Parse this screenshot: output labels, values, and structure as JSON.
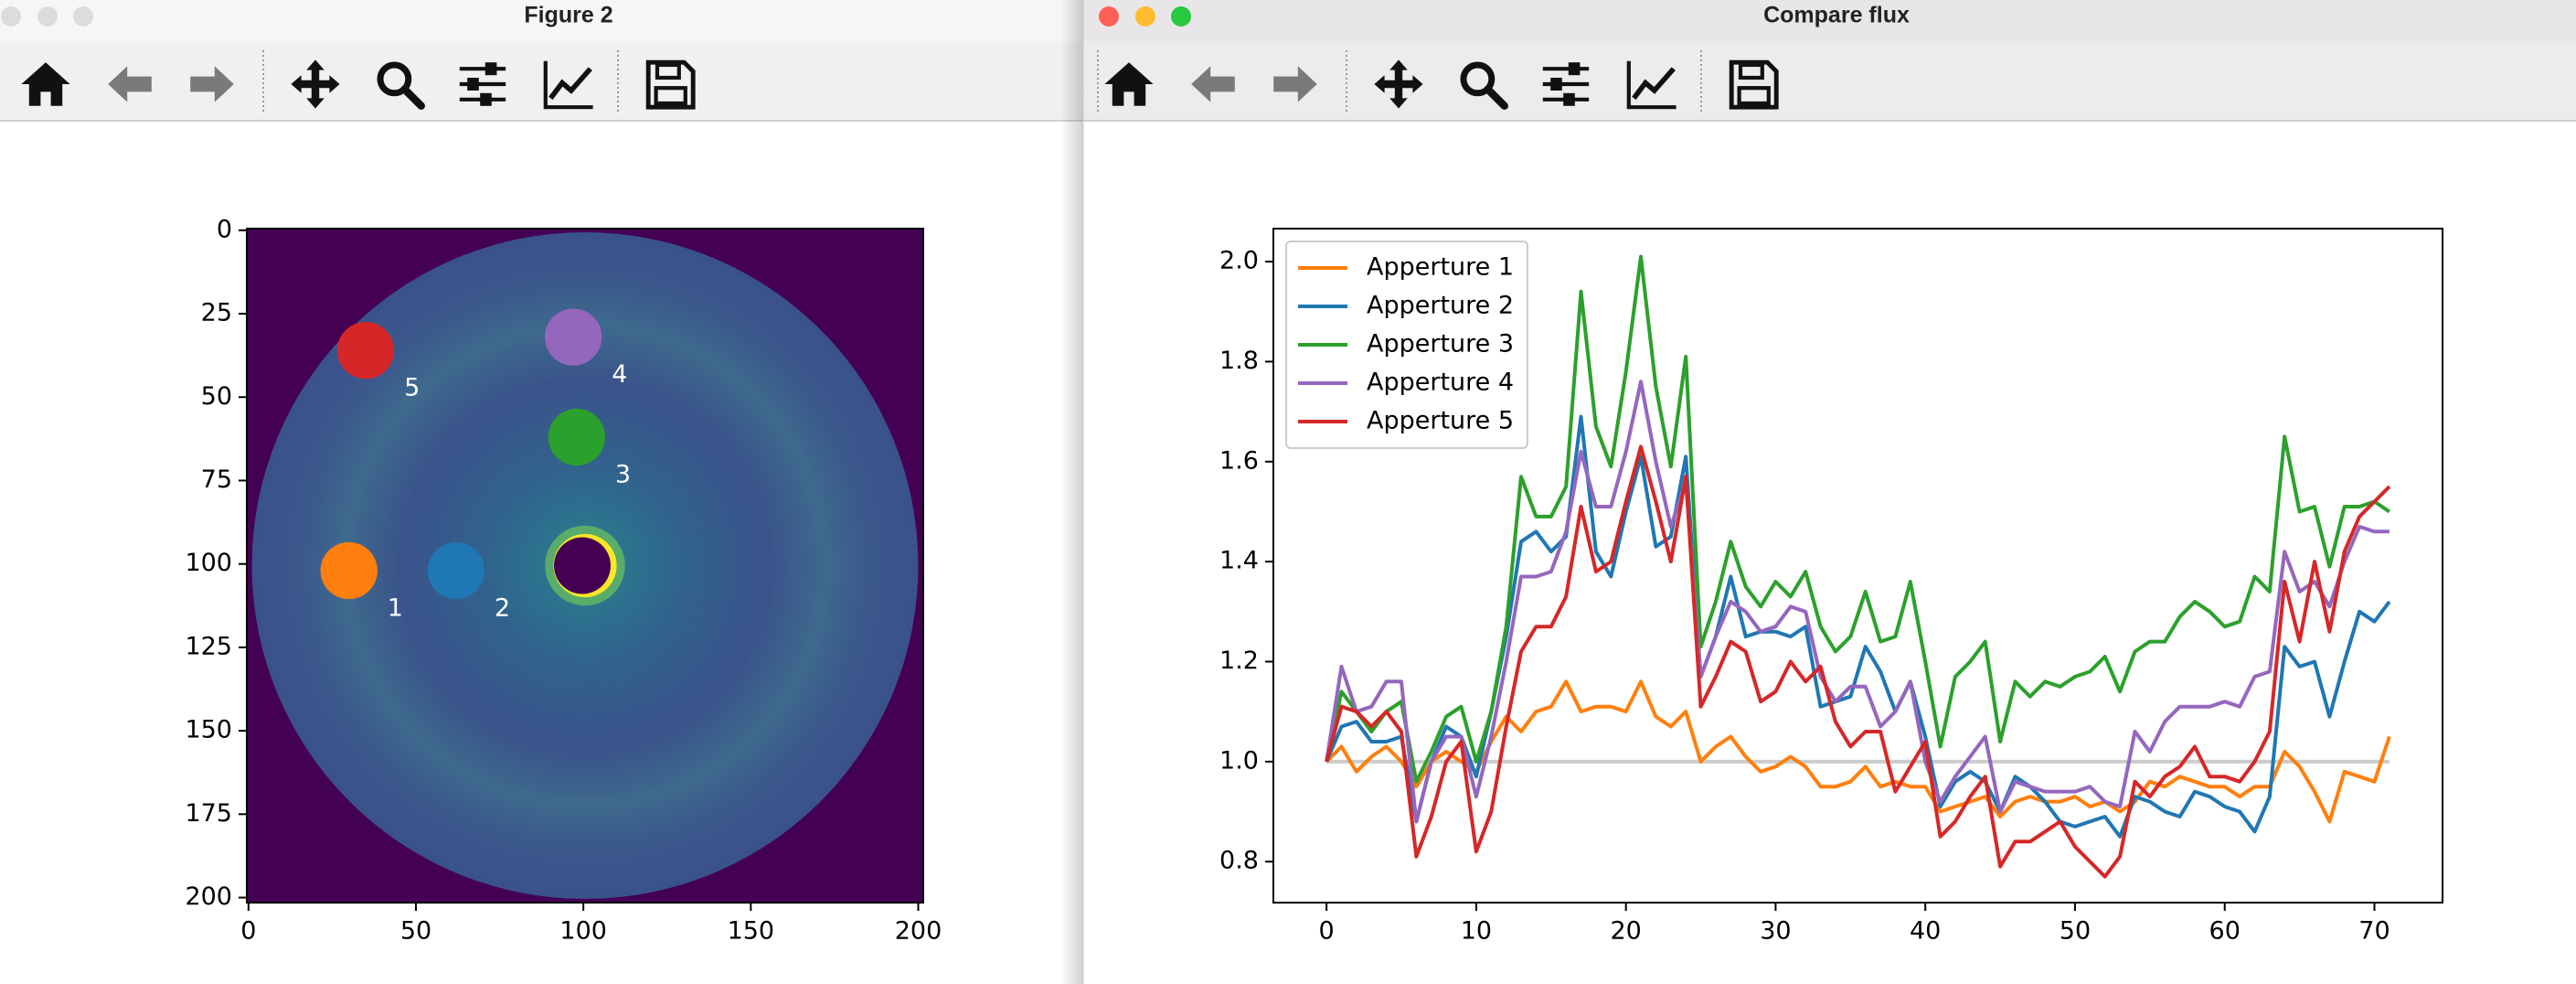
{
  "windows": [
    {
      "title": "Figure 2"
    },
    {
      "title": "Compare flux"
    }
  ],
  "chart_data": [
    {
      "type": "image",
      "x": [
        30,
        62,
        98,
        97,
        35
      ],
      "y": [
        102,
        102,
        62,
        32,
        36
      ],
      "sizes": [
        8.5,
        8.5,
        8.5,
        8.5,
        8.5
      ],
      "labels": [
        "1",
        "2",
        "3",
        "4",
        "5"
      ],
      "colors": [
        "#ff7f0e",
        "#1f77b4",
        "#2ca02c",
        "#9467bd",
        "#d62728"
      ],
      "xlim": [
        -0.5,
        201.5
      ],
      "ylim": [
        201.5,
        -0.5
      ],
      "xticks": [
        0,
        50,
        100,
        150,
        200
      ],
      "yticks": [
        0,
        25,
        50,
        75,
        100,
        125,
        150,
        175,
        200
      ]
    },
    {
      "type": "line",
      "x": [
        0,
        1,
        2,
        3,
        4,
        5,
        6,
        7,
        8,
        9,
        10,
        11,
        12,
        13,
        14,
        15,
        16,
        17,
        18,
        19,
        20,
        21,
        22,
        23,
        24,
        25,
        26,
        27,
        28,
        29,
        30,
        31,
        32,
        33,
        34,
        35,
        36,
        37,
        38,
        39,
        40,
        41,
        42,
        43,
        44,
        45,
        46,
        47,
        48,
        49,
        50,
        51,
        52,
        53,
        54,
        55,
        56,
        57,
        58,
        59,
        60,
        61,
        62,
        63,
        64,
        65,
        66,
        67,
        68,
        69,
        70,
        71
      ],
      "series": [
        {
          "name": "Apperture 1",
          "color": "#ff7f0e",
          "values": [
            1.0,
            1.03,
            0.98,
            1.01,
            1.03,
            1.0,
            0.95,
            1.0,
            1.02,
            1.0,
            0.98,
            1.04,
            1.09,
            1.06,
            1.1,
            1.11,
            1.16,
            1.1,
            1.11,
            1.11,
            1.1,
            1.16,
            1.09,
            1.07,
            1.1,
            1.0,
            1.03,
            1.05,
            1.01,
            0.98,
            0.99,
            1.01,
            0.99,
            0.95,
            0.95,
            0.96,
            0.99,
            0.95,
            0.96,
            0.95,
            0.95,
            0.9,
            0.91,
            0.92,
            0.93,
            0.89,
            0.92,
            0.93,
            0.92,
            0.92,
            0.93,
            0.91,
            0.92,
            0.9,
            0.92,
            0.96,
            0.95,
            0.97,
            0.96,
            0.95,
            0.95,
            0.93,
            0.95,
            0.95,
            1.02,
            0.99,
            0.94,
            0.88,
            0.98,
            0.97,
            0.96,
            1.05
          ]
        },
        {
          "name": "Apperture 2",
          "color": "#1f77b4",
          "values": [
            1.0,
            1.07,
            1.08,
            1.04,
            1.04,
            1.05,
            0.88,
            1.0,
            1.07,
            1.05,
            0.97,
            1.1,
            1.25,
            1.44,
            1.46,
            1.42,
            1.45,
            1.69,
            1.42,
            1.37,
            1.5,
            1.61,
            1.43,
            1.45,
            1.61,
            1.17,
            1.25,
            1.37,
            1.25,
            1.26,
            1.26,
            1.25,
            1.27,
            1.11,
            1.12,
            1.13,
            1.23,
            1.18,
            1.1,
            1.16,
            1.05,
            0.91,
            0.96,
            0.98,
            0.96,
            0.9,
            0.97,
            0.95,
            0.92,
            0.88,
            0.87,
            0.88,
            0.89,
            0.85,
            0.93,
            0.92,
            0.9,
            0.89,
            0.94,
            0.93,
            0.91,
            0.9,
            0.86,
            0.93,
            1.23,
            1.19,
            1.2,
            1.09,
            1.2,
            1.3,
            1.28,
            1.32
          ]
        },
        {
          "name": "Apperture 3",
          "color": "#2ca02c",
          "values": [
            1.0,
            1.14,
            1.1,
            1.06,
            1.1,
            1.12,
            0.96,
            1.02,
            1.09,
            1.11,
            1.0,
            1.1,
            1.27,
            1.57,
            1.49,
            1.49,
            1.55,
            1.94,
            1.67,
            1.59,
            1.78,
            2.01,
            1.75,
            1.59,
            1.81,
            1.23,
            1.32,
            1.44,
            1.35,
            1.31,
            1.36,
            1.33,
            1.38,
            1.27,
            1.22,
            1.25,
            1.34,
            1.24,
            1.25,
            1.36,
            1.2,
            1.03,
            1.17,
            1.2,
            1.24,
            1.04,
            1.16,
            1.13,
            1.16,
            1.15,
            1.17,
            1.18,
            1.21,
            1.14,
            1.22,
            1.24,
            1.24,
            1.29,
            1.32,
            1.3,
            1.27,
            1.28,
            1.37,
            1.34,
            1.65,
            1.5,
            1.51,
            1.39,
            1.51,
            1.51,
            1.52,
            1.5
          ]
        },
        {
          "name": "Apperture 4",
          "color": "#9467bd",
          "values": [
            1.0,
            1.19,
            1.1,
            1.11,
            1.16,
            1.16,
            0.88,
            1.0,
            1.05,
            1.05,
            0.93,
            1.05,
            1.2,
            1.37,
            1.37,
            1.38,
            1.46,
            1.62,
            1.51,
            1.51,
            1.62,
            1.76,
            1.6,
            1.47,
            1.56,
            1.17,
            1.25,
            1.32,
            1.3,
            1.26,
            1.27,
            1.31,
            1.3,
            1.17,
            1.12,
            1.15,
            1.15,
            1.07,
            1.1,
            1.16,
            1.0,
            0.92,
            0.97,
            1.01,
            1.05,
            0.9,
            0.96,
            0.95,
            0.94,
            0.94,
            0.94,
            0.95,
            0.92,
            0.91,
            1.06,
            1.02,
            1.08,
            1.11,
            1.11,
            1.11,
            1.12,
            1.11,
            1.17,
            1.18,
            1.42,
            1.34,
            1.36,
            1.31,
            1.4,
            1.47,
            1.46,
            1.46
          ]
        },
        {
          "name": "Apperture 5",
          "color": "#d62728",
          "values": [
            1.0,
            1.11,
            1.1,
            1.07,
            1.1,
            1.06,
            0.81,
            0.89,
            1.0,
            1.04,
            0.82,
            0.9,
            1.07,
            1.22,
            1.27,
            1.27,
            1.33,
            1.51,
            1.38,
            1.4,
            1.52,
            1.63,
            1.52,
            1.4,
            1.57,
            1.11,
            1.17,
            1.24,
            1.22,
            1.12,
            1.14,
            1.2,
            1.16,
            1.19,
            1.08,
            1.03,
            1.06,
            1.06,
            0.94,
            0.99,
            1.04,
            0.85,
            0.88,
            0.93,
            0.97,
            0.79,
            0.84,
            0.84,
            0.86,
            0.88,
            0.83,
            0.8,
            0.77,
            0.81,
            0.96,
            0.93,
            0.97,
            0.99,
            1.03,
            0.97,
            0.97,
            0.96,
            1.0,
            1.06,
            1.36,
            1.24,
            1.4,
            1.26,
            1.42,
            1.49,
            1.52,
            1.55
          ]
        }
      ],
      "reference_line": {
        "value": 1,
        "color": "#cccccc"
      },
      "legend": "upper left",
      "xlim": [
        -3.55,
        74.55
      ],
      "ylim": [
        0.718,
        2.066
      ],
      "xticks": [
        0,
        10,
        20,
        30,
        40,
        50,
        60,
        70
      ],
      "yticks": [
        0.8,
        {
          "value": 1,
          "label": "1.0"
        },
        1.2,
        1.4,
        1.6,
        1.8,
        {
          "value": 2,
          "label": "2.0"
        }
      ]
    }
  ]
}
